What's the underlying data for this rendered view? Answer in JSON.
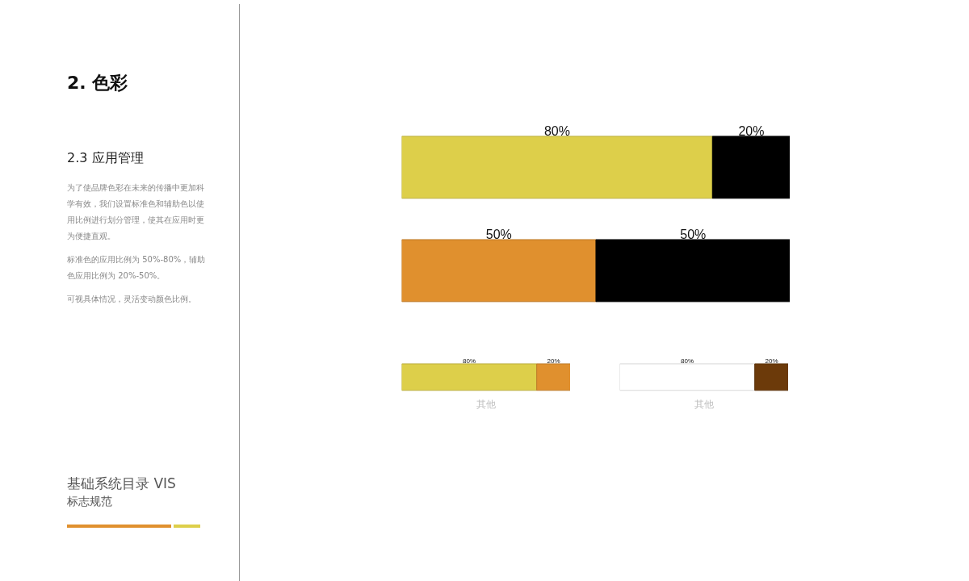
{
  "chart_data": [
    {
      "type": "other",
      "title": "2. 色彩",
      "subtitle": "2.3 应用管理",
      "annotations": [
        "为了使品牌色彩在未来的传播中更加科学有效，我们设置标准色和辅助色以使用比例进行划分管理，使其在应用时更为便捷直观。",
        "标准色的应用比例为 50%-80%，辅助色应用比例为 20%-50%。",
        "可视具体情况，灵活变动颜色比例。",
        "基础系统目录 VIS",
        "标志规范"
      ]
    },
    {
      "type": "bar",
      "orientation": "horizontal",
      "stacked": true,
      "categories": [
        null,
        null
      ],
      "series": [
        {
          "colors": [
            "#ddcf4a",
            "#e0902e"
          ],
          "values": [
            80,
            50
          ],
          "value_labels": [
            "80%",
            "50%"
          ]
        },
        {
          "color": "#000000",
          "values": [
            20,
            50
          ],
          "value_labels": [
            "20%",
            "50%"
          ]
        }
      ]
    },
    {
      "type": "bar",
      "orientation": "horizontal",
      "stacked": true,
      "categories": [
        null
      ],
      "xlabel": "其他",
      "series": [
        {
          "color": "#ddcf4a",
          "values": [
            80
          ],
          "value_labels": [
            "80%"
          ]
        },
        {
          "color": "#e0902e",
          "values": [
            20
          ],
          "value_labels": [
            "20%"
          ]
        }
      ]
    },
    {
      "type": "bar",
      "orientation": "horizontal",
      "stacked": true,
      "categories": [
        null
      ],
      "xlabel": "其他",
      "series": [
        {
          "color": "#ffffff",
          "values": [
            80
          ],
          "value_labels": [
            "80%"
          ]
        },
        {
          "color": "#6c3a0a",
          "values": [
            20
          ],
          "value_labels": [
            "20%"
          ]
        }
      ]
    }
  ]
}
